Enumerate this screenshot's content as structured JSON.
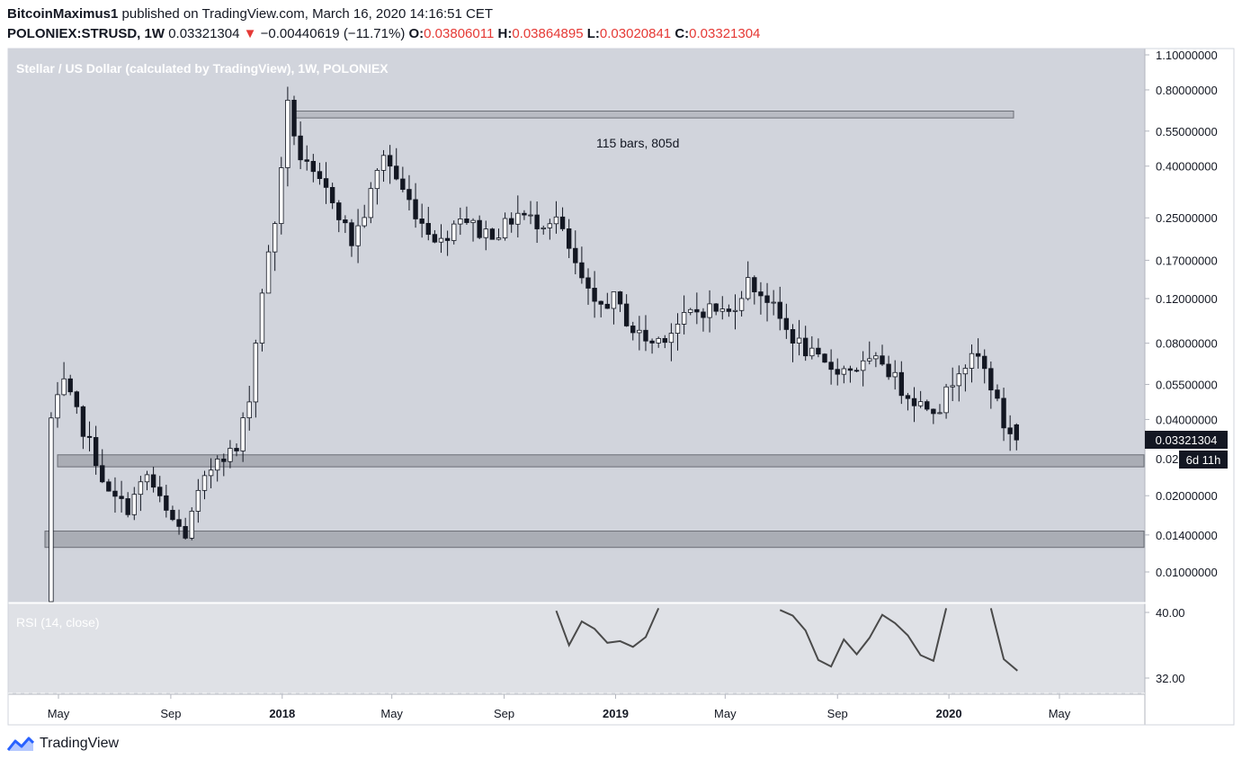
{
  "header": {
    "author": "BitcoinMaximus1",
    "published": "published on TradingView.com, March 16, 2020 14:16:51 CET",
    "symbol": "POLONIEX:STRUSD, 1W",
    "last": "0.03321304",
    "change": "−0.00440619 (−11.71%)",
    "o_label": "O:",
    "o": "0.03806011",
    "h_label": "H:",
    "h": "0.03864895",
    "l_label": "L:",
    "l": "0.03020841",
    "c_label": "C:",
    "c": "0.03321304",
    "down_arrow": "▼"
  },
  "colors": {
    "panel_bg": "#d1d4dc",
    "rsi_bg": "#dfe1e6",
    "axis_bg": "#ffffff",
    "up_body": "#ffffff",
    "down_body": "#131722",
    "wick": "#131722",
    "zone_fill": "#8a8d95",
    "down_text": "#e53935",
    "tv_logo": "#2962ff"
  },
  "footer": {
    "brand": "TradingView",
    "logo_icon": "tradingview-logo-icon"
  },
  "chart_data": [
    {
      "type": "candlestick",
      "title": "Stellar / US Dollar (calculated by TradingView), 1W, POLONIEX",
      "y_scale": "log",
      "y_ticks": [
        "1.10000000",
        "0.80000000",
        "0.55000000",
        "0.40000000",
        "0.25000000",
        "0.17000000",
        "0.12000000",
        "0.08000000",
        "0.05500000",
        "0.04000000",
        "0.02000000",
        "0.01400000",
        "0.01000000"
      ],
      "y_tick_values": [
        1.1,
        0.8,
        0.55,
        0.4,
        0.25,
        0.17,
        0.12,
        0.08,
        0.055,
        0.04,
        0.02,
        0.014,
        0.01
      ],
      "x_ticks": [
        "May",
        "Sep",
        "2018",
        "May",
        "Sep",
        "2019",
        "May",
        "Sep",
        "2020",
        "May"
      ],
      "x_tick_dates": [
        "2017-05",
        "2017-09",
        "2018-01",
        "2018-05",
        "2018-09",
        "2019-01",
        "2019-05",
        "2019-09",
        "2020-01",
        "2020-05"
      ],
      "close_anchor_dates": [
        "2017-04-23",
        "2017-05-07",
        "2017-05-21",
        "2017-06-11",
        "2017-06-25",
        "2017-07-16",
        "2017-08-06",
        "2017-08-27",
        "2017-09-17",
        "2017-10-01",
        "2017-10-22",
        "2017-11-12",
        "2017-11-26",
        "2017-12-10",
        "2017-12-24",
        "2018-01-07",
        "2018-01-21",
        "2018-02-04",
        "2018-02-25",
        "2018-03-18",
        "2018-04-01",
        "2018-04-22",
        "2018-05-13",
        "2018-06-03",
        "2018-06-24",
        "2018-07-15",
        "2018-08-05",
        "2018-08-26",
        "2018-09-16",
        "2018-10-07",
        "2018-10-28",
        "2018-11-18",
        "2018-12-09",
        "2018-12-30",
        "2019-01-20",
        "2019-02-10",
        "2019-03-03",
        "2019-03-24",
        "2019-04-14",
        "2019-05-05",
        "2019-05-26",
        "2019-06-16",
        "2019-07-07",
        "2019-07-28",
        "2019-08-18",
        "2019-09-08",
        "2019-09-29",
        "2019-10-20",
        "2019-11-10",
        "2019-12-01",
        "2019-12-22",
        "2020-01-12",
        "2020-02-02",
        "2020-02-16",
        "2020-03-01",
        "2020-03-16"
      ],
      "close_anchor_values": [
        0.04,
        0.055,
        0.042,
        0.028,
        0.02,
        0.018,
        0.024,
        0.017,
        0.014,
        0.02,
        0.029,
        0.03,
        0.05,
        0.13,
        0.24,
        0.69,
        0.43,
        0.36,
        0.3,
        0.2,
        0.26,
        0.45,
        0.32,
        0.24,
        0.2,
        0.26,
        0.22,
        0.22,
        0.26,
        0.24,
        0.25,
        0.16,
        0.11,
        0.12,
        0.09,
        0.08,
        0.09,
        0.105,
        0.11,
        0.105,
        0.14,
        0.12,
        0.09,
        0.075,
        0.065,
        0.063,
        0.065,
        0.068,
        0.053,
        0.046,
        0.045,
        0.065,
        0.07,
        0.055,
        0.038,
        0.0332
      ],
      "ohlc": [],
      "zones": [
        {
          "low": 0.026,
          "high": 0.029
        },
        {
          "low": 0.0125,
          "high": 0.0145
        },
        {
          "low": 0.62,
          "high": 0.66
        }
      ],
      "annotations": [
        "115 bars, 805d"
      ],
      "last_price_label": "0.03321304",
      "countdown_label": "6d 11h",
      "partial_tick": "0.02"
    },
    {
      "type": "line",
      "title": "RSI (14, close)",
      "y_ticks": [
        "40.00",
        "32.00"
      ],
      "y_tick_values": [
        40,
        32
      ],
      "x": [
        "2018-10-28",
        "2018-11-11",
        "2018-11-25",
        "2018-12-09",
        "2018-12-23",
        "2019-01-06",
        "2019-01-20",
        "2019-02-03",
        "2019-02-17",
        "2019-06-30",
        "2019-07-14",
        "2019-07-28",
        "2019-08-11",
        "2019-08-25",
        "2019-09-08",
        "2019-09-22",
        "2019-10-06",
        "2019-10-20",
        "2019-11-03",
        "2019-11-17",
        "2019-12-01",
        "2019-12-15",
        "2019-12-29",
        "2020-02-16",
        "2020-03-01",
        "2020-03-16"
      ],
      "values": [
        40.2,
        36.0,
        38.9,
        38.0,
        36.3,
        36.5,
        35.8,
        37.0,
        40.5,
        40.3,
        39.6,
        37.8,
        34.2,
        33.4,
        36.7,
        34.9,
        36.9,
        39.7,
        38.7,
        37.2,
        34.8,
        34.1,
        40.5,
        40.5,
        34.3,
        32.9
      ]
    }
  ]
}
